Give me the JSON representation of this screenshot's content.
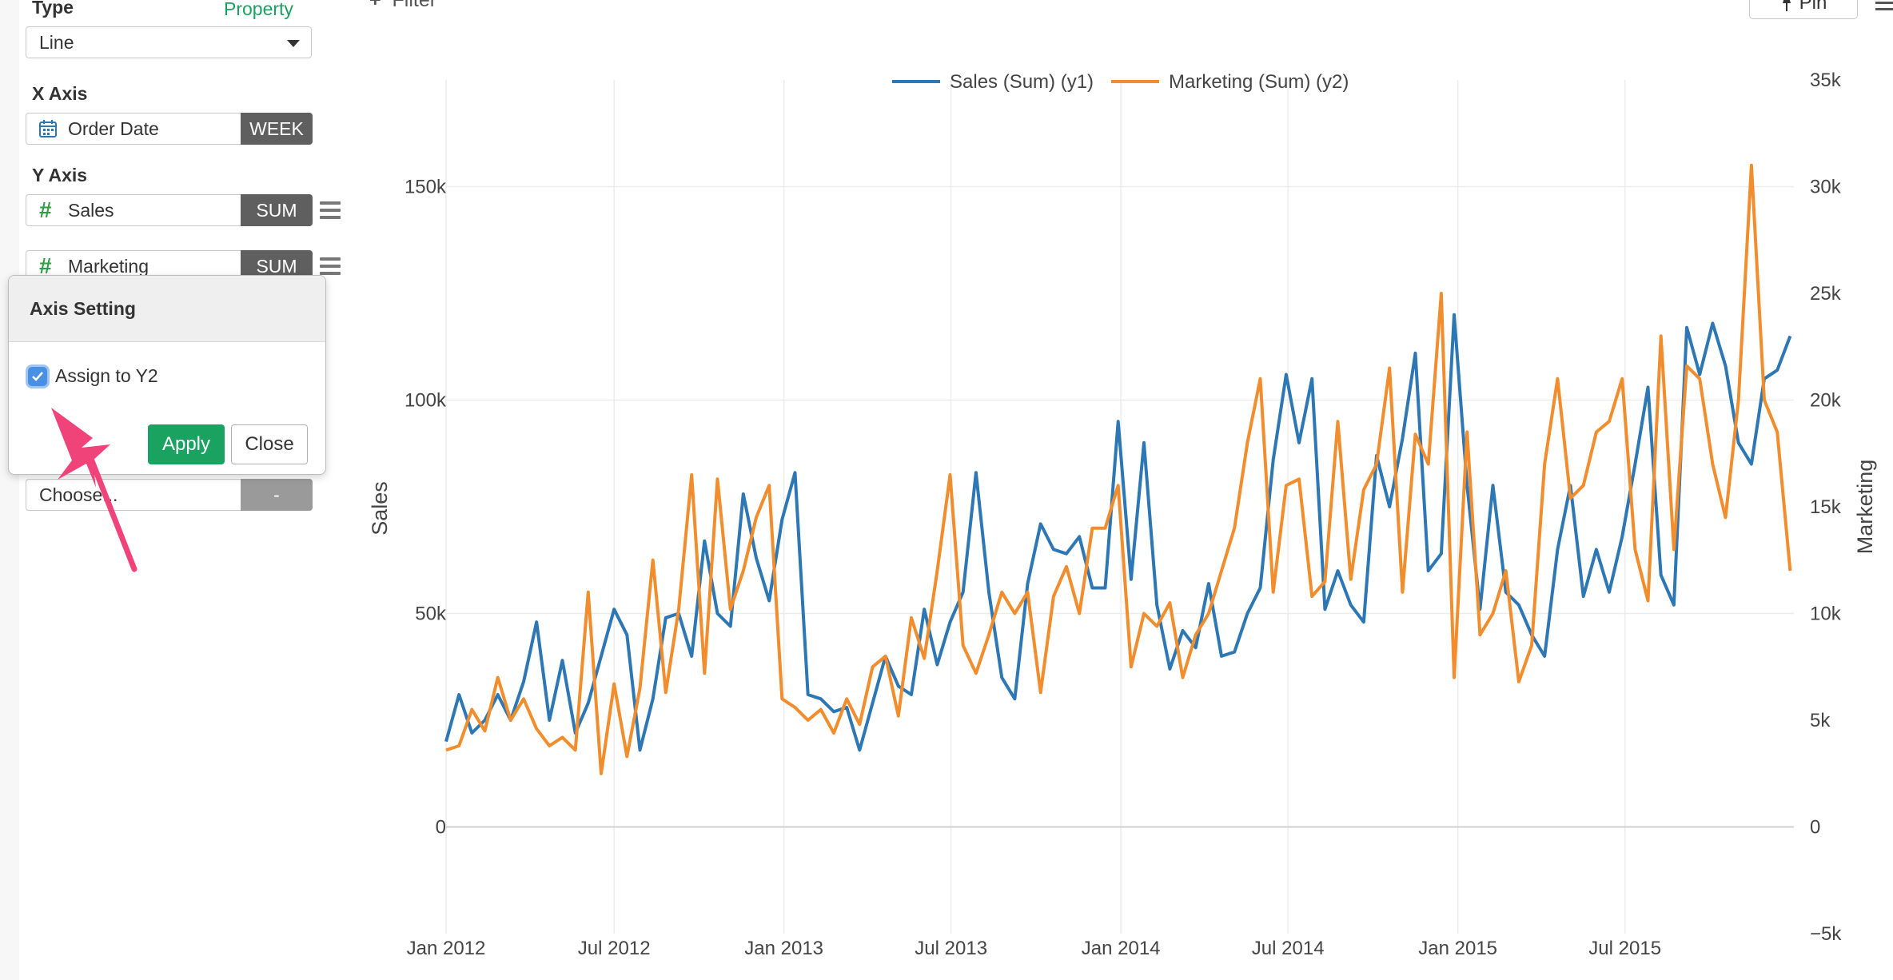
{
  "sidebar": {
    "type_label": "Type",
    "property_link": "Property",
    "chart_type_value": "Line",
    "xaxis_label": "X Axis",
    "x_field": "Order Date",
    "x_agg": "WEEK",
    "yaxis_label": "Y Axis",
    "y_fields": [
      {
        "name": "Sales",
        "agg": "SUM"
      },
      {
        "name": "Marketing",
        "agg": "SUM"
      }
    ],
    "extra_field": {
      "name": "Choose...",
      "agg": "-"
    }
  },
  "popover": {
    "title": "Axis Setting",
    "checkbox_label": "Assign to Y2",
    "checked": true,
    "apply_label": "Apply",
    "close_label": "Close"
  },
  "toolbar": {
    "filter_label": "Filter",
    "pin_label": "Pin"
  },
  "colors": {
    "sales": "#2c77b4",
    "marketing": "#f28d2e",
    "accent": "#1aa260",
    "arrow": "#f0437a"
  },
  "chart_data": {
    "type": "line",
    "title": "",
    "legend": {
      "placement": "top-center"
    },
    "xlabel": "",
    "ylabel": "Sales",
    "y2label": "Marketing",
    "xlim": [
      "2012-01-01",
      "2015-12-31"
    ],
    "ylim": [
      -25000,
      175000
    ],
    "y2lim": [
      -5000,
      35000
    ],
    "x_tick_labels": [
      "Jan 2012",
      "Jul 2012",
      "Jan 2013",
      "Jul 2013",
      "Jan 2014",
      "Jul 2014",
      "Jan 2015",
      "Jul 2015"
    ],
    "x_tick_dates": [
      "2012-01-01",
      "2012-07-01",
      "2013-01-01",
      "2013-07-01",
      "2014-01-01",
      "2014-07-01",
      "2015-01-01",
      "2015-07-01"
    ],
    "y_ticks": [
      {
        "value": 0,
        "label": "0"
      },
      {
        "value": 50000,
        "label": "50k"
      },
      {
        "value": 100000,
        "label": "100k"
      },
      {
        "value": 150000,
        "label": "150k"
      }
    ],
    "y2_ticks": [
      {
        "value": -5000,
        "label": "−5k"
      },
      {
        "value": 0,
        "label": "0"
      },
      {
        "value": 5000,
        "label": "5k"
      },
      {
        "value": 10000,
        "label": "10k"
      },
      {
        "value": 15000,
        "label": "15k"
      },
      {
        "value": 20000,
        "label": "20k"
      },
      {
        "value": 25000,
        "label": "25k"
      },
      {
        "value": 30000,
        "label": "30k"
      },
      {
        "value": 35000,
        "label": "35k"
      }
    ],
    "grid": true,
    "series": [
      {
        "name": "Sales (Sum) (y1)",
        "axis": "y1",
        "x": [
          "2012-01-01",
          "2012-01-15",
          "2012-01-29",
          "2012-02-12",
          "2012-02-26",
          "2012-03-11",
          "2012-03-25",
          "2012-04-08",
          "2012-04-22",
          "2012-05-06",
          "2012-05-20",
          "2012-06-03",
          "2012-06-17",
          "2012-07-01",
          "2012-07-15",
          "2012-07-29",
          "2012-08-12",
          "2012-08-26",
          "2012-09-09",
          "2012-09-23",
          "2012-10-07",
          "2012-10-21",
          "2012-11-04",
          "2012-11-18",
          "2012-12-02",
          "2012-12-16",
          "2012-12-30",
          "2013-01-13",
          "2013-01-27",
          "2013-02-10",
          "2013-02-24",
          "2013-03-10",
          "2013-03-24",
          "2013-04-07",
          "2013-04-21",
          "2013-05-05",
          "2013-05-19",
          "2013-06-02",
          "2013-06-16",
          "2013-06-30",
          "2013-07-14",
          "2013-07-28",
          "2013-08-11",
          "2013-08-25",
          "2013-09-08",
          "2013-09-22",
          "2013-10-06",
          "2013-10-20",
          "2013-11-03",
          "2013-11-17",
          "2013-12-01",
          "2013-12-15",
          "2013-12-29",
          "2014-01-12",
          "2014-01-26",
          "2014-02-09",
          "2014-02-23",
          "2014-03-09",
          "2014-03-23",
          "2014-04-06",
          "2014-04-20",
          "2014-05-04",
          "2014-05-18",
          "2014-06-01",
          "2014-06-15",
          "2014-06-29",
          "2014-07-13",
          "2014-07-27",
          "2014-08-10",
          "2014-08-24",
          "2014-09-07",
          "2014-09-21",
          "2014-10-05",
          "2014-10-19",
          "2014-11-02",
          "2014-11-16",
          "2014-11-30",
          "2014-12-14",
          "2014-12-28",
          "2015-01-11",
          "2015-01-25",
          "2015-02-08",
          "2015-02-22",
          "2015-03-08",
          "2015-03-22",
          "2015-04-05",
          "2015-04-19",
          "2015-05-03",
          "2015-05-17",
          "2015-05-31",
          "2015-06-14",
          "2015-06-28",
          "2015-07-12",
          "2015-07-26",
          "2015-08-09",
          "2015-08-23",
          "2015-09-06",
          "2015-09-20",
          "2015-10-04",
          "2015-10-18",
          "2015-11-01",
          "2015-11-15",
          "2015-11-29",
          "2015-12-13",
          "2015-12-27"
        ],
        "values": [
          20000,
          31000,
          22000,
          25000,
          31000,
          25000,
          34000,
          48000,
          25000,
          39000,
          22000,
          29000,
          40000,
          51000,
          45000,
          18000,
          30000,
          49000,
          50000,
          40000,
          67000,
          50000,
          47000,
          78000,
          63000,
          53000,
          72000,
          83000,
          31000,
          30000,
          27000,
          28000,
          18000,
          29000,
          40000,
          33000,
          31000,
          51000,
          38000,
          48000,
          55000,
          83000,
          55000,
          35000,
          30000,
          57000,
          71000,
          65000,
          64000,
          68000,
          56000,
          56000,
          95000,
          58000,
          90000,
          52000,
          37000,
          46000,
          42000,
          57000,
          40000,
          41000,
          50000,
          56000,
          86000,
          106000,
          90000,
          105000,
          51000,
          60000,
          52000,
          48000,
          87000,
          75000,
          91000,
          111000,
          60000,
          64000,
          120000,
          80000,
          51000,
          80000,
          55000,
          52000,
          45000,
          40000,
          65000,
          80000,
          54000,
          65000,
          55000,
          68000,
          85000,
          103000,
          59000,
          52000,
          117000,
          106000,
          118000,
          108000,
          90000,
          85000,
          105000,
          107000,
          115000
        ],
        "color": "#2c77b4"
      },
      {
        "name": "Marketing (Sum) (y2)",
        "axis": "y2",
        "x": [
          "2012-01-01",
          "2012-01-15",
          "2012-01-29",
          "2012-02-12",
          "2012-02-26",
          "2012-03-11",
          "2012-03-25",
          "2012-04-08",
          "2012-04-22",
          "2012-05-06",
          "2012-05-20",
          "2012-06-03",
          "2012-06-17",
          "2012-07-01",
          "2012-07-15",
          "2012-07-29",
          "2012-08-12",
          "2012-08-26",
          "2012-09-09",
          "2012-09-23",
          "2012-10-07",
          "2012-10-21",
          "2012-11-04",
          "2012-11-18",
          "2012-12-02",
          "2012-12-16",
          "2012-12-30",
          "2013-01-13",
          "2013-01-27",
          "2013-02-10",
          "2013-02-24",
          "2013-03-10",
          "2013-03-24",
          "2013-04-07",
          "2013-04-21",
          "2013-05-05",
          "2013-05-19",
          "2013-06-02",
          "2013-06-16",
          "2013-06-30",
          "2013-07-14",
          "2013-07-28",
          "2013-08-11",
          "2013-08-25",
          "2013-09-08",
          "2013-09-22",
          "2013-10-06",
          "2013-10-20",
          "2013-11-03",
          "2013-11-17",
          "2013-12-01",
          "2013-12-15",
          "2013-12-29",
          "2014-01-12",
          "2014-01-26",
          "2014-02-09",
          "2014-02-23",
          "2014-03-09",
          "2014-03-23",
          "2014-04-06",
          "2014-04-20",
          "2014-05-04",
          "2014-05-18",
          "2014-06-01",
          "2014-06-15",
          "2014-06-29",
          "2014-07-13",
          "2014-07-27",
          "2014-08-10",
          "2014-08-24",
          "2014-09-07",
          "2014-09-21",
          "2014-10-05",
          "2014-10-19",
          "2014-11-02",
          "2014-11-16",
          "2014-11-30",
          "2014-12-14",
          "2014-12-28",
          "2015-01-11",
          "2015-01-25",
          "2015-02-08",
          "2015-02-22",
          "2015-03-08",
          "2015-03-22",
          "2015-04-05",
          "2015-04-19",
          "2015-05-03",
          "2015-05-17",
          "2015-05-31",
          "2015-06-14",
          "2015-06-28",
          "2015-07-12",
          "2015-07-26",
          "2015-08-09",
          "2015-08-23",
          "2015-09-06",
          "2015-09-20",
          "2015-10-04",
          "2015-10-18",
          "2015-11-01",
          "2015-11-15",
          "2015-11-29",
          "2015-12-13",
          "2015-12-27"
        ],
        "values": [
          3600,
          3800,
          5500,
          4500,
          7000,
          5000,
          6000,
          4600,
          3800,
          4200,
          3600,
          11000,
          2500,
          6700,
          3300,
          6500,
          12500,
          6300,
          10200,
          16500,
          7200,
          16300,
          10200,
          12000,
          14500,
          16000,
          6000,
          5600,
          5000,
          5500,
          4400,
          6000,
          4800,
          7500,
          8000,
          5200,
          9800,
          7900,
          12000,
          16500,
          8500,
          7200,
          9000,
          11000,
          10000,
          11000,
          6300,
          10800,
          12200,
          10000,
          14000,
          14000,
          16000,
          7500,
          10000,
          9400,
          10500,
          7000,
          9000,
          10000,
          12000,
          14000,
          18000,
          21000,
          11000,
          16000,
          16300,
          10800,
          11500,
          19000,
          11600,
          15800,
          17000,
          21500,
          11000,
          18400,
          17000,
          25000,
          7000,
          18500,
          9000,
          10000,
          12000,
          6800,
          8500,
          17000,
          21000,
          15400,
          16000,
          18500,
          19000,
          21000,
          13000,
          10600,
          23000,
          13000,
          21600,
          21000,
          17000,
          14500,
          20000,
          31000,
          20000,
          18500,
          12000
        ],
        "color": "#f28d2e"
      }
    ]
  }
}
